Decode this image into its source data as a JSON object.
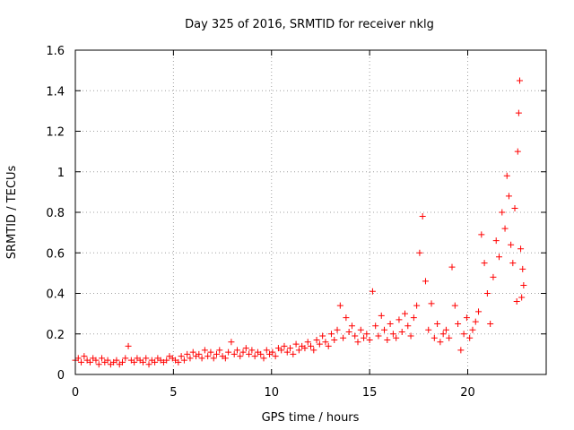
{
  "chart_data": {
    "type": "scatter",
    "title": "Day 325 of 2016, SRMTID for receiver nklg",
    "xlabel": "GPS time / hours",
    "ylabel": "SRMTID / TECUs",
    "xlim": [
      0,
      24
    ],
    "ylim": [
      0,
      1.6
    ],
    "xticks": [
      0,
      5,
      10,
      15,
      20
    ],
    "xtick_labels": [
      "0",
      "5",
      "10",
      "15",
      "20"
    ],
    "yticks": [
      0,
      0.2,
      0.4,
      0.6,
      0.8,
      1.0,
      1.2,
      1.4,
      1.6
    ],
    "ytick_labels": [
      "0",
      "0.2",
      "0.4",
      "0.6",
      "0.8",
      "1",
      "1.2",
      "1.4",
      "1.6"
    ],
    "grid": true,
    "marker": "plus",
    "color": "#ff0000",
    "series": [
      {
        "name": "SRMTID",
        "points": [
          [
            0.0,
            0.07
          ],
          [
            0.15,
            0.08
          ],
          [
            0.3,
            0.06
          ],
          [
            0.45,
            0.09
          ],
          [
            0.6,
            0.07
          ],
          [
            0.75,
            0.06
          ],
          [
            0.9,
            0.08
          ],
          [
            1.05,
            0.07
          ],
          [
            1.2,
            0.05
          ],
          [
            1.35,
            0.08
          ],
          [
            1.5,
            0.06
          ],
          [
            1.65,
            0.07
          ],
          [
            1.8,
            0.05
          ],
          [
            1.95,
            0.06
          ],
          [
            2.1,
            0.07
          ],
          [
            2.25,
            0.05
          ],
          [
            2.4,
            0.06
          ],
          [
            2.55,
            0.08
          ],
          [
            2.7,
            0.14
          ],
          [
            2.85,
            0.07
          ],
          [
            3.0,
            0.06
          ],
          [
            3.15,
            0.08
          ],
          [
            3.3,
            0.07
          ],
          [
            3.45,
            0.06
          ],
          [
            3.6,
            0.08
          ],
          [
            3.75,
            0.05
          ],
          [
            3.9,
            0.07
          ],
          [
            4.05,
            0.06
          ],
          [
            4.2,
            0.08
          ],
          [
            4.35,
            0.07
          ],
          [
            4.5,
            0.06
          ],
          [
            4.65,
            0.07
          ],
          [
            4.8,
            0.09
          ],
          [
            4.95,
            0.08
          ],
          [
            5.1,
            0.07
          ],
          [
            5.25,
            0.06
          ],
          [
            5.4,
            0.09
          ],
          [
            5.55,
            0.07
          ],
          [
            5.7,
            0.1
          ],
          [
            5.85,
            0.08
          ],
          [
            6.0,
            0.11
          ],
          [
            6.15,
            0.09
          ],
          [
            6.3,
            0.1
          ],
          [
            6.45,
            0.08
          ],
          [
            6.6,
            0.12
          ],
          [
            6.75,
            0.09
          ],
          [
            6.9,
            0.11
          ],
          [
            7.05,
            0.08
          ],
          [
            7.2,
            0.1
          ],
          [
            7.35,
            0.12
          ],
          [
            7.5,
            0.09
          ],
          [
            7.65,
            0.08
          ],
          [
            7.8,
            0.11
          ],
          [
            7.95,
            0.16
          ],
          [
            8.1,
            0.1
          ],
          [
            8.25,
            0.12
          ],
          [
            8.4,
            0.09
          ],
          [
            8.55,
            0.11
          ],
          [
            8.7,
            0.13
          ],
          [
            8.85,
            0.1
          ],
          [
            9.0,
            0.12
          ],
          [
            9.15,
            0.09
          ],
          [
            9.3,
            0.11
          ],
          [
            9.45,
            0.1
          ],
          [
            9.6,
            0.08
          ],
          [
            9.75,
            0.12
          ],
          [
            9.9,
            0.1
          ],
          [
            10.05,
            0.11
          ],
          [
            10.2,
            0.09
          ],
          [
            10.35,
            0.13
          ],
          [
            10.5,
            0.12
          ],
          [
            10.65,
            0.14
          ],
          [
            10.8,
            0.11
          ],
          [
            10.95,
            0.13
          ],
          [
            11.1,
            0.1
          ],
          [
            11.25,
            0.15
          ],
          [
            11.4,
            0.12
          ],
          [
            11.55,
            0.14
          ],
          [
            11.7,
            0.13
          ],
          [
            11.85,
            0.16
          ],
          [
            12.0,
            0.14
          ],
          [
            12.15,
            0.12
          ],
          [
            12.3,
            0.17
          ],
          [
            12.45,
            0.15
          ],
          [
            12.6,
            0.19
          ],
          [
            12.75,
            0.16
          ],
          [
            12.9,
            0.14
          ],
          [
            13.05,
            0.2
          ],
          [
            13.2,
            0.17
          ],
          [
            13.35,
            0.22
          ],
          [
            13.5,
            0.34
          ],
          [
            13.65,
            0.18
          ],
          [
            13.8,
            0.28
          ],
          [
            13.95,
            0.21
          ],
          [
            14.1,
            0.24
          ],
          [
            14.25,
            0.19
          ],
          [
            14.4,
            0.16
          ],
          [
            14.55,
            0.22
          ],
          [
            14.7,
            0.18
          ],
          [
            14.85,
            0.2
          ],
          [
            15.0,
            0.17
          ],
          [
            15.15,
            0.41
          ],
          [
            15.3,
            0.24
          ],
          [
            15.45,
            0.19
          ],
          [
            15.6,
            0.29
          ],
          [
            15.75,
            0.22
          ],
          [
            15.9,
            0.17
          ],
          [
            16.05,
            0.25
          ],
          [
            16.2,
            0.2
          ],
          [
            16.35,
            0.18
          ],
          [
            16.5,
            0.27
          ],
          [
            16.65,
            0.21
          ],
          [
            16.8,
            0.3
          ],
          [
            16.95,
            0.24
          ],
          [
            17.1,
            0.19
          ],
          [
            17.25,
            0.28
          ],
          [
            17.4,
            0.34
          ],
          [
            17.55,
            0.6
          ],
          [
            17.7,
            0.78
          ],
          [
            17.85,
            0.46
          ],
          [
            18.0,
            0.22
          ],
          [
            18.15,
            0.35
          ],
          [
            18.3,
            0.18
          ],
          [
            18.45,
            0.25
          ],
          [
            18.6,
            0.16
          ],
          [
            18.75,
            0.2
          ],
          [
            18.9,
            0.22
          ],
          [
            19.05,
            0.18
          ],
          [
            19.2,
            0.53
          ],
          [
            19.35,
            0.34
          ],
          [
            19.5,
            0.25
          ],
          [
            19.65,
            0.12
          ],
          [
            19.8,
            0.2
          ],
          [
            19.95,
            0.28
          ],
          [
            20.1,
            0.18
          ],
          [
            20.25,
            0.22
          ],
          [
            20.4,
            0.26
          ],
          [
            20.55,
            0.31
          ],
          [
            20.7,
            0.69
          ],
          [
            20.85,
            0.55
          ],
          [
            21.0,
            0.4
          ],
          [
            21.15,
            0.25
          ],
          [
            21.3,
            0.48
          ],
          [
            21.45,
            0.66
          ],
          [
            21.6,
            0.58
          ],
          [
            21.75,
            0.8
          ],
          [
            21.9,
            0.72
          ],
          [
            22.0,
            0.98
          ],
          [
            22.1,
            0.88
          ],
          [
            22.2,
            0.64
          ],
          [
            22.3,
            0.55
          ],
          [
            22.4,
            0.82
          ],
          [
            22.5,
            0.36
          ],
          [
            22.55,
            1.1
          ],
          [
            22.6,
            1.29
          ],
          [
            22.65,
            1.45
          ],
          [
            22.7,
            0.62
          ],
          [
            22.75,
            0.38
          ],
          [
            22.8,
            0.52
          ],
          [
            22.85,
            0.44
          ]
        ]
      }
    ]
  }
}
